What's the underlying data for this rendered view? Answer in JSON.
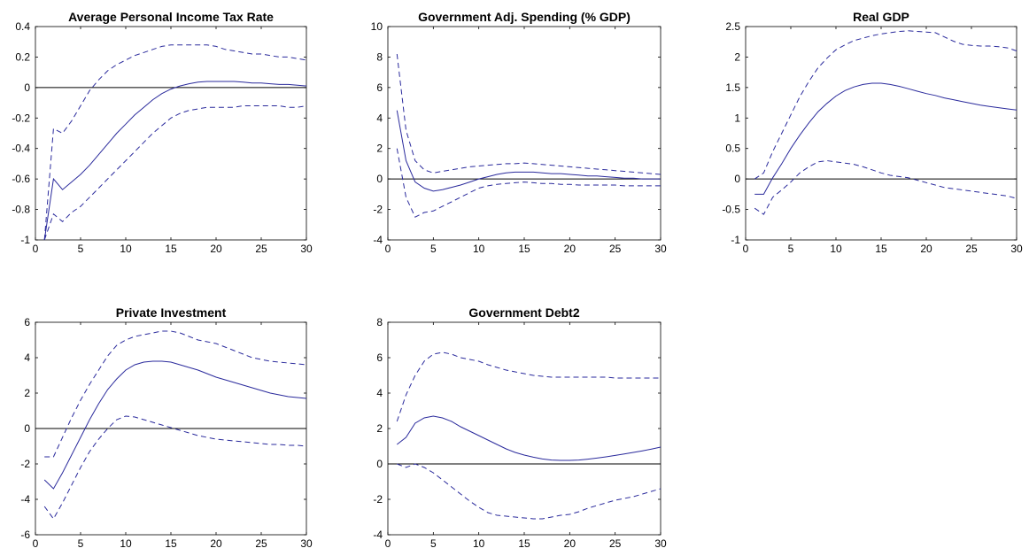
{
  "colors": {
    "series": "#2a2a9c",
    "axis": "#000000",
    "zero_line": "#000000",
    "background": "#ffffff"
  },
  "chart_data": [
    {
      "type": "line",
      "title": "Average Personal Income Tax Rate",
      "xlabel": "",
      "ylabel": "",
      "xlim": [
        0,
        30
      ],
      "ylim": [
        -1,
        0.4
      ],
      "xticks": [
        "0",
        "5",
        "10",
        "15",
        "20",
        "25",
        "30"
      ],
      "yticks": [
        "-1",
        "-0.8",
        "-0.6",
        "-0.4",
        "-0.2",
        "0",
        "0.2",
        "0.4"
      ],
      "zero_line": 0,
      "grid": false,
      "legend": "none",
      "x": [
        1,
        2,
        3,
        4,
        5,
        6,
        7,
        8,
        9,
        10,
        11,
        12,
        13,
        14,
        15,
        16,
        17,
        18,
        19,
        20,
        21,
        22,
        23,
        24,
        25,
        26,
        27,
        28,
        29,
        30
      ],
      "series": [
        {
          "style": "solid",
          "values": [
            -1.0,
            -0.6,
            -0.67,
            -0.62,
            -0.57,
            -0.51,
            -0.44,
            -0.37,
            -0.3,
            -0.24,
            -0.18,
            -0.13,
            -0.08,
            -0.04,
            -0.01,
            0.01,
            0.025,
            0.035,
            0.04,
            0.04,
            0.04,
            0.04,
            0.035,
            0.03,
            0.03,
            0.025,
            0.02,
            0.02,
            0.015,
            0.01
          ]
        },
        {
          "style": "dashed",
          "values": [
            -1.0,
            -0.27,
            -0.3,
            -0.22,
            -0.12,
            -0.02,
            0.05,
            0.11,
            0.15,
            0.18,
            0.21,
            0.23,
            0.25,
            0.27,
            0.28,
            0.28,
            0.28,
            0.28,
            0.28,
            0.27,
            0.25,
            0.24,
            0.23,
            0.22,
            0.22,
            0.21,
            0.2,
            0.2,
            0.19,
            0.18
          ]
        },
        {
          "style": "dashed",
          "values": [
            -1.0,
            -0.83,
            -0.88,
            -0.82,
            -0.78,
            -0.72,
            -0.66,
            -0.6,
            -0.54,
            -0.48,
            -0.42,
            -0.36,
            -0.3,
            -0.25,
            -0.2,
            -0.17,
            -0.15,
            -0.14,
            -0.13,
            -0.13,
            -0.13,
            -0.13,
            -0.12,
            -0.12,
            -0.12,
            -0.12,
            -0.12,
            -0.13,
            -0.13,
            -0.12
          ]
        }
      ]
    },
    {
      "type": "line",
      "title": "Government Adj. Spending (% GDP)",
      "xlabel": "",
      "ylabel": "",
      "xlim": [
        0,
        30
      ],
      "ylim": [
        -4,
        10
      ],
      "xticks": [
        "0",
        "5",
        "10",
        "15",
        "20",
        "25",
        "30"
      ],
      "yticks": [
        "-4",
        "-2",
        "0",
        "2",
        "4",
        "6",
        "8",
        "10"
      ],
      "zero_line": 0,
      "grid": false,
      "legend": "none",
      "x": [
        1,
        2,
        3,
        4,
        5,
        6,
        7,
        8,
        9,
        10,
        11,
        12,
        13,
        14,
        15,
        16,
        17,
        18,
        19,
        20,
        21,
        22,
        23,
        24,
        25,
        26,
        27,
        28,
        29,
        30
      ],
      "series": [
        {
          "style": "solid",
          "values": [
            4.5,
            1.2,
            -0.2,
            -0.6,
            -0.8,
            -0.7,
            -0.55,
            -0.4,
            -0.2,
            0.0,
            0.15,
            0.3,
            0.4,
            0.45,
            0.45,
            0.45,
            0.4,
            0.35,
            0.35,
            0.3,
            0.25,
            0.2,
            0.2,
            0.15,
            0.1,
            0.05,
            0.05,
            0.0,
            0.0,
            0.0
          ]
        },
        {
          "style": "dashed",
          "values": [
            8.2,
            3.2,
            1.2,
            0.6,
            0.4,
            0.5,
            0.6,
            0.7,
            0.8,
            0.85,
            0.9,
            0.95,
            1.0,
            1.0,
            1.05,
            1.0,
            0.95,
            0.9,
            0.85,
            0.8,
            0.75,
            0.7,
            0.65,
            0.6,
            0.55,
            0.5,
            0.45,
            0.4,
            0.35,
            0.3
          ]
        },
        {
          "style": "dashed",
          "values": [
            2.0,
            -1.2,
            -2.5,
            -2.2,
            -2.1,
            -1.8,
            -1.5,
            -1.2,
            -0.9,
            -0.6,
            -0.45,
            -0.35,
            -0.3,
            -0.25,
            -0.2,
            -0.25,
            -0.3,
            -0.3,
            -0.35,
            -0.35,
            -0.4,
            -0.4,
            -0.4,
            -0.4,
            -0.4,
            -0.45,
            -0.45,
            -0.45,
            -0.45,
            -0.45
          ]
        }
      ]
    },
    {
      "type": "line",
      "title": "Real GDP",
      "xlabel": "",
      "ylabel": "",
      "xlim": [
        0,
        30
      ],
      "ylim": [
        -1,
        2.5
      ],
      "xticks": [
        "0",
        "5",
        "10",
        "15",
        "20",
        "25",
        "30"
      ],
      "yticks": [
        "-1",
        "-0.5",
        "0",
        "0.5",
        "1",
        "1.5",
        "2",
        "2.5"
      ],
      "zero_line": 0,
      "grid": false,
      "legend": "none",
      "x": [
        1,
        2,
        3,
        4,
        5,
        6,
        7,
        8,
        9,
        10,
        11,
        12,
        13,
        14,
        15,
        16,
        17,
        18,
        19,
        20,
        21,
        22,
        23,
        24,
        25,
        26,
        27,
        28,
        29,
        30
      ],
      "series": [
        {
          "style": "solid",
          "values": [
            -0.25,
            -0.25,
            0.02,
            0.25,
            0.5,
            0.72,
            0.92,
            1.1,
            1.24,
            1.36,
            1.45,
            1.51,
            1.55,
            1.57,
            1.57,
            1.55,
            1.52,
            1.48,
            1.44,
            1.4,
            1.37,
            1.33,
            1.3,
            1.27,
            1.24,
            1.21,
            1.19,
            1.17,
            1.15,
            1.13
          ]
        },
        {
          "style": "dashed",
          "values": [
            0.0,
            0.1,
            0.45,
            0.75,
            1.05,
            1.35,
            1.6,
            1.82,
            1.98,
            2.12,
            2.2,
            2.27,
            2.31,
            2.35,
            2.38,
            2.4,
            2.42,
            2.43,
            2.42,
            2.41,
            2.4,
            2.33,
            2.26,
            2.21,
            2.19,
            2.18,
            2.18,
            2.17,
            2.15,
            2.1
          ]
        },
        {
          "style": "dashed",
          "values": [
            -0.48,
            -0.58,
            -0.3,
            -0.18,
            -0.05,
            0.1,
            0.2,
            0.28,
            0.3,
            0.28,
            0.26,
            0.24,
            0.2,
            0.15,
            0.1,
            0.06,
            0.04,
            0.02,
            -0.02,
            -0.06,
            -0.1,
            -0.14,
            -0.16,
            -0.18,
            -0.2,
            -0.22,
            -0.24,
            -0.26,
            -0.28,
            -0.32
          ]
        }
      ]
    },
    {
      "type": "line",
      "title": "Private Investment",
      "xlabel": "",
      "ylabel": "",
      "xlim": [
        0,
        30
      ],
      "ylim": [
        -6,
        6
      ],
      "xticks": [
        "0",
        "5",
        "10",
        "15",
        "20",
        "25",
        "30"
      ],
      "yticks": [
        "-6",
        "-4",
        "-2",
        "0",
        "2",
        "4",
        "6"
      ],
      "zero_line": 0,
      "grid": false,
      "legend": "none",
      "x": [
        1,
        2,
        3,
        4,
        5,
        6,
        7,
        8,
        9,
        10,
        11,
        12,
        13,
        14,
        15,
        16,
        17,
        18,
        19,
        20,
        21,
        22,
        23,
        24,
        25,
        26,
        27,
        28,
        29,
        30
      ],
      "series": [
        {
          "style": "solid",
          "values": [
            -2.9,
            -3.4,
            -2.5,
            -1.5,
            -0.5,
            0.5,
            1.4,
            2.2,
            2.8,
            3.3,
            3.6,
            3.75,
            3.8,
            3.8,
            3.75,
            3.6,
            3.45,
            3.3,
            3.1,
            2.9,
            2.75,
            2.6,
            2.45,
            2.3,
            2.15,
            2.0,
            1.9,
            1.8,
            1.75,
            1.7
          ]
        },
        {
          "style": "dashed",
          "values": [
            -1.6,
            -1.6,
            -0.5,
            0.6,
            1.6,
            2.5,
            3.3,
            4.1,
            4.7,
            5.0,
            5.2,
            5.3,
            5.4,
            5.5,
            5.5,
            5.4,
            5.2,
            5.0,
            4.9,
            4.8,
            4.6,
            4.4,
            4.2,
            4.0,
            3.9,
            3.8,
            3.75,
            3.7,
            3.65,
            3.6
          ]
        },
        {
          "style": "dashed",
          "values": [
            -4.4,
            -5.1,
            -4.2,
            -3.2,
            -2.2,
            -1.3,
            -0.6,
            0.0,
            0.5,
            0.7,
            0.65,
            0.5,
            0.35,
            0.2,
            0.05,
            -0.1,
            -0.25,
            -0.4,
            -0.5,
            -0.6,
            -0.65,
            -0.7,
            -0.75,
            -0.8,
            -0.85,
            -0.9,
            -0.9,
            -0.95,
            -0.95,
            -1.0
          ]
        }
      ]
    },
    {
      "type": "line",
      "title": "Government Debt2",
      "xlabel": "",
      "ylabel": "",
      "xlim": [
        0,
        30
      ],
      "ylim": [
        -4,
        8
      ],
      "xticks": [
        "0",
        "5",
        "10",
        "15",
        "20",
        "25",
        "30"
      ],
      "yticks": [
        "-4",
        "-2",
        "0",
        "2",
        "4",
        "6",
        "8"
      ],
      "zero_line": 0,
      "grid": false,
      "legend": "none",
      "x": [
        1,
        2,
        3,
        4,
        5,
        6,
        7,
        8,
        9,
        10,
        11,
        12,
        13,
        14,
        15,
        16,
        17,
        18,
        19,
        20,
        21,
        22,
        23,
        24,
        25,
        26,
        27,
        28,
        29,
        30
      ],
      "series": [
        {
          "style": "solid",
          "values": [
            1.1,
            1.5,
            2.3,
            2.6,
            2.7,
            2.6,
            2.4,
            2.1,
            1.85,
            1.6,
            1.35,
            1.1,
            0.85,
            0.65,
            0.5,
            0.38,
            0.28,
            0.22,
            0.2,
            0.2,
            0.22,
            0.27,
            0.33,
            0.4,
            0.48,
            0.56,
            0.65,
            0.74,
            0.84,
            0.95
          ]
        },
        {
          "style": "dashed",
          "values": [
            2.4,
            3.9,
            5.0,
            5.8,
            6.2,
            6.3,
            6.2,
            6.0,
            5.9,
            5.8,
            5.6,
            5.45,
            5.3,
            5.2,
            5.1,
            5.0,
            4.95,
            4.9,
            4.9,
            4.9,
            4.9,
            4.9,
            4.9,
            4.9,
            4.85,
            4.85,
            4.85,
            4.85,
            4.85,
            4.85
          ]
        },
        {
          "style": "dashed",
          "values": [
            0.0,
            -0.2,
            0.0,
            -0.2,
            -0.5,
            -0.9,
            -1.3,
            -1.7,
            -2.1,
            -2.45,
            -2.75,
            -2.9,
            -2.95,
            -3.0,
            -3.05,
            -3.1,
            -3.1,
            -3.0,
            -2.9,
            -2.85,
            -2.7,
            -2.5,
            -2.35,
            -2.2,
            -2.05,
            -1.95,
            -1.85,
            -1.7,
            -1.55,
            -1.4
          ]
        }
      ]
    }
  ]
}
